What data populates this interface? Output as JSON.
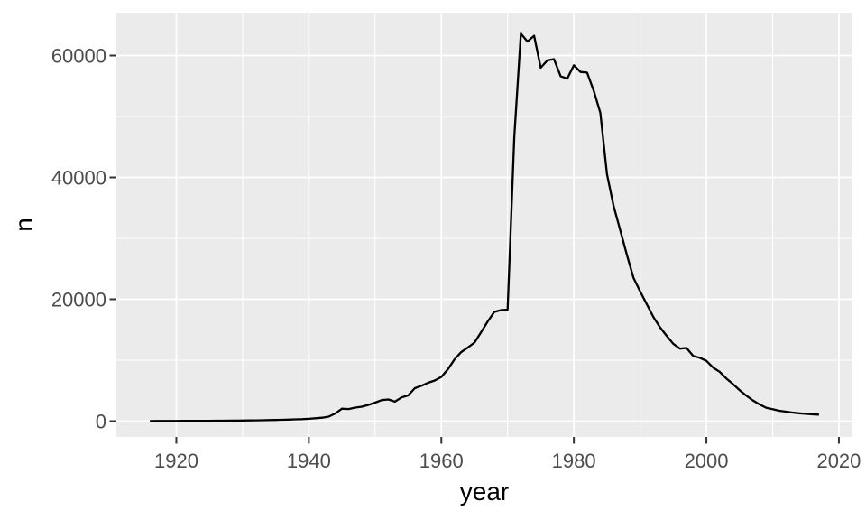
{
  "chart_data": {
    "type": "line",
    "title": "",
    "xlabel": "year",
    "ylabel": "n",
    "series_name": "n",
    "x": [
      1916,
      1917,
      1918,
      1919,
      1920,
      1921,
      1922,
      1923,
      1924,
      1925,
      1926,
      1927,
      1928,
      1929,
      1930,
      1931,
      1932,
      1933,
      1934,
      1935,
      1936,
      1937,
      1938,
      1939,
      1940,
      1941,
      1942,
      1943,
      1944,
      1945,
      1946,
      1947,
      1948,
      1949,
      1950,
      1951,
      1952,
      1953,
      1954,
      1955,
      1956,
      1957,
      1958,
      1959,
      1960,
      1961,
      1962,
      1963,
      1964,
      1965,
      1966,
      1967,
      1968,
      1969,
      1970,
      1971,
      1972,
      1973,
      1974,
      1975,
      1976,
      1977,
      1978,
      1979,
      1980,
      1981,
      1982,
      1983,
      1984,
      1985,
      1986,
      1987,
      1988,
      1989,
      1990,
      1991,
      1992,
      1993,
      1994,
      1995,
      1996,
      1997,
      1998,
      1999,
      2000,
      2001,
      2002,
      2003,
      2004,
      2005,
      2006,
      2007,
      2008,
      2009,
      2010,
      2011,
      2012,
      2013,
      2014,
      2015,
      2016,
      2017
    ],
    "values": [
      20,
      25,
      30,
      30,
      35,
      40,
      45,
      50,
      55,
      60,
      70,
      75,
      85,
      95,
      110,
      120,
      135,
      150,
      170,
      195,
      220,
      255,
      300,
      330,
      390,
      470,
      560,
      740,
      1260,
      2050,
      1980,
      2220,
      2370,
      2670,
      3040,
      3450,
      3550,
      3200,
      3900,
      4220,
      5410,
      5810,
      6300,
      6670,
      7260,
      8520,
      10150,
      11330,
      12070,
      12890,
      14590,
      16370,
      17930,
      18220,
      18300,
      46600,
      63600,
      62300,
      63250,
      58000,
      59200,
      59400,
      56600,
      56200,
      58400,
      57300,
      57200,
      54200,
      50600,
      40500,
      35300,
      31300,
      27300,
      23500,
      21300,
      19200,
      17100,
      15400,
      14000,
      12700,
      11900,
      12000,
      10700,
      10400,
      9900,
      8800,
      8100,
      7000,
      6100,
      5100,
      4200,
      3400,
      2750,
      2200,
      1950,
      1700,
      1560,
      1410,
      1290,
      1200,
      1110,
      1070
    ],
    "xlim": [
      1910.95,
      2022.05
    ],
    "ylim": [
      -2593,
      67037
    ],
    "x_major_ticks": [
      1920,
      1940,
      1960,
      1980,
      2000,
      2020
    ],
    "x_major_tick_labels": [
      "1920",
      "1940",
      "1960",
      "1980",
      "2000",
      "2020"
    ],
    "x_minor_ticks": [
      1930,
      1950,
      1970,
      1990,
      2010
    ],
    "y_major_ticks": [
      0,
      20000,
      40000,
      60000
    ],
    "y_major_tick_labels": [
      "0",
      "20000",
      "40000",
      "60000"
    ],
    "y_minor_ticks": [
      10000,
      30000,
      50000
    ],
    "grid": "major+minor",
    "legend_position": "none",
    "style": {
      "panel_bg": "#EBEBEB",
      "grid_color": "#FFFFFF",
      "line_color": "#000000",
      "tick_color": "#333333",
      "tick_label_color": "#4D4D4D",
      "axis_title_color": "#000000"
    }
  }
}
